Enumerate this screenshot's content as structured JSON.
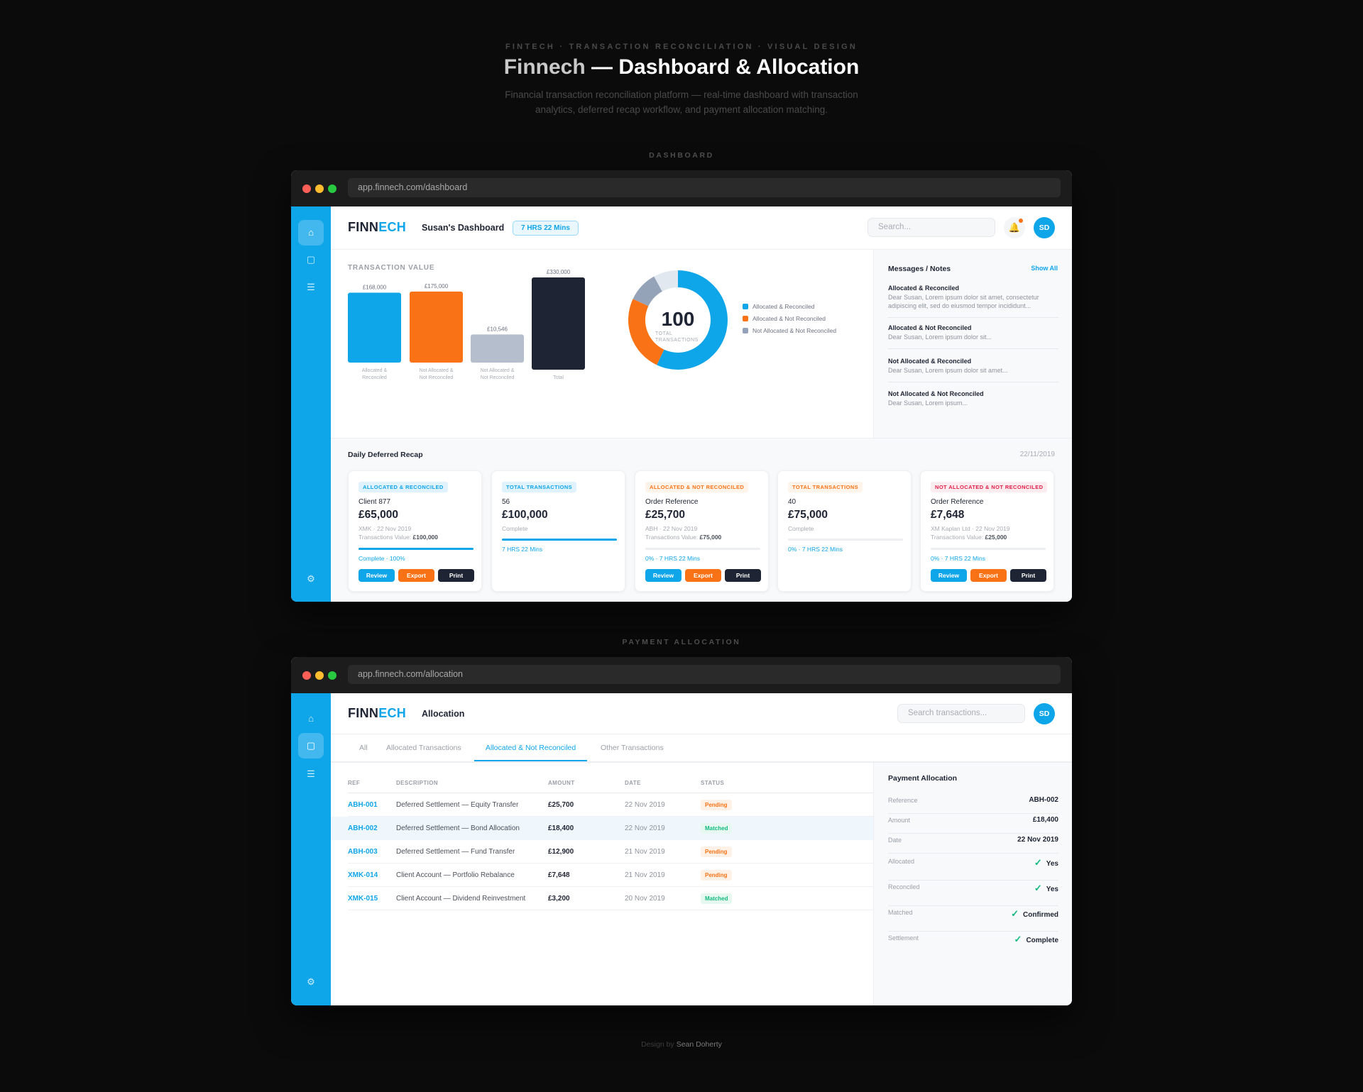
{
  "hero": {
    "eyebrow": "FINTECH · TRANSACTION RECONCILIATION · VISUAL DESIGN",
    "title_part1": "Finnech",
    "title_part2": " — Dashboard & Allocation",
    "subtitle_line1": "Financial transaction reconciliation platform — real-time dashboard with transaction",
    "subtitle_line2": "analytics, deferred recap workflow, and payment allocation matching."
  },
  "sections": {
    "dashboard": "DASHBOARD",
    "allocation": "PAYMENT ALLOCATION"
  },
  "colors": {
    "primary": "#0ea5e9",
    "orange": "#f97316",
    "navy": "#1e2433",
    "gray": "#94a3b8",
    "light": "#e2e8f0",
    "green": "#10b981",
    "red": "#e11d48"
  },
  "dashboard": {
    "url": "app.finnech.com/dashboard",
    "logo_a": "FINN",
    "logo_b": "ECH",
    "page_title": "Susan's Dashboard",
    "timer": "7 HRS 22 Mins",
    "search_placeholder": "Search...",
    "avatar": "SD",
    "icons": [
      "home-icon",
      "square-icon",
      "menu-icon",
      "settings-icon"
    ],
    "messages": {
      "title": "Messages / Notes",
      "show_all": "Show All",
      "items": [
        {
          "title": "Allocated & Reconciled",
          "body": "Dear Susan, Lorem ipsum dolor sit amet, consectetur adipiscing elit, sed do eiusmod tempor incididunt..."
        },
        {
          "title": "Allocated & Not Reconciled",
          "body": "Dear Susan, Lorem ipsum dolor sit..."
        },
        {
          "title": "Not Allocated & Reconciled",
          "body": "Dear Susan, Lorem ipsum dolor sit amet..."
        },
        {
          "title": "Not Allocated & Not Reconciled",
          "body": "Dear Susan, Lorem ipsum..."
        }
      ]
    },
    "recap": {
      "title": "Daily Deferred Recap",
      "date": "22/11/2019",
      "cards": [
        {
          "tag": "ALLOCATED & RECONCILED",
          "tag_color": "#0ea5e9",
          "tag_bg": "#e0f2fe",
          "sub": "Client 877",
          "amount": "£65,000",
          "meta1": "XMK · 22 Nov 2019",
          "meta2_label": "Transactions Value: ",
          "meta2_value": "£100,000",
          "progress": 100,
          "status": "Complete · 100%",
          "buttons": [
            "Review",
            "Export",
            "Print"
          ]
        },
        {
          "tag": "TOTAL TRANSACTIONS",
          "tag_color": "#0ea5e9",
          "tag_bg": "#e0f2fe",
          "sub": "56",
          "amount": "£100,000",
          "meta1": "Complete",
          "progress": 100,
          "status": "7 HRS 22 Mins"
        },
        {
          "tag": "ALLOCATED & NOT RECONCILED",
          "tag_color": "#f97316",
          "tag_bg": "#fff4ea",
          "sub": "Order Reference",
          "amount": "£25,700",
          "meta1": "ABH · 22 Nov 2019",
          "meta2_label": "Transactions Value: ",
          "meta2_value": "£75,000",
          "progress": 0,
          "status": "0% · 7 HRS 22 Mins",
          "buttons": [
            "Review",
            "Export",
            "Print"
          ]
        },
        {
          "tag": "TOTAL TRANSACTIONS",
          "tag_color": "#f97316",
          "tag_bg": "#fff4ea",
          "sub": "40",
          "amount": "£75,000",
          "meta1": "Complete",
          "progress": 0,
          "status": "0% · 7 HRS 22 Mins"
        },
        {
          "tag": "NOT ALLOCATED & NOT RECONCILED",
          "tag_color": "#e11d48",
          "tag_bg": "#fdecef",
          "sub": "Order Reference",
          "amount": "£7,648",
          "meta1": "XM Kaplan Ltd · 22 Nov 2019",
          "meta2_label": "Transactions Value: ",
          "meta2_value": "£25,000",
          "progress": 0,
          "status": "0% · 7 HRS 22 Mins",
          "buttons": [
            "Review",
            "Export",
            "Print"
          ]
        }
      ]
    }
  },
  "chart_data": [
    {
      "type": "bar",
      "title": "TRANSACTION VALUE",
      "categories": [
        "Allocated & Reconciled",
        "Not Allocated & Not Reconciled",
        "Not Allocated & Not Reconciled",
        "Total"
      ],
      "values": [
        168000,
        175000,
        10546,
        330000
      ],
      "value_labels": [
        "£168,000",
        "£175,000",
        "£10,546",
        "£330,000"
      ],
      "colors": [
        "#0ea5e9",
        "#f97316",
        "#94a3b8",
        "#1e2433"
      ],
      "grid": false
    },
    {
      "type": "pie",
      "center_value": "100",
      "center_label": "TOTAL TRANSACTIONS",
      "slices": [
        {
          "name": "Allocated & Reconciled",
          "value": 57,
          "color": "#0ea5e9"
        },
        {
          "name": "Allocated & Not Reconciled",
          "value": 25,
          "color": "#f97316"
        },
        {
          "name": "Not Allocated & Not Reconciled",
          "value": 10,
          "color": "#94a3b8"
        },
        {
          "value": 8,
          "color": "#e2e8f0"
        }
      ],
      "legend": "right"
    }
  ],
  "allocation": {
    "url": "app.finnech.com/allocation",
    "logo_a": "FINN",
    "logo_b": "ECH",
    "page_title": "Allocation",
    "search_placeholder": "Search transactions...",
    "avatar": "SD",
    "tabs": [
      "All",
      "Allocated Transactions",
      "Allocated & Not Reconciled",
      "Other Transactions"
    ],
    "active_tab": 2,
    "columns": [
      "REF",
      "DESCRIPTION",
      "AMOUNT",
      "DATE",
      "STATUS"
    ],
    "rows": [
      {
        "ref": "ABH-001",
        "desc": "Deferred Settlement — Equity Transfer",
        "amount": "£25,700",
        "date": "22 Nov 2019",
        "status": "Pending"
      },
      {
        "ref": "ABH-002",
        "desc": "Deferred Settlement — Bond Allocation",
        "amount": "£18,400",
        "date": "22 Nov 2019",
        "status": "Matched",
        "selected": true
      },
      {
        "ref": "ABH-003",
        "desc": "Deferred Settlement — Fund Transfer",
        "amount": "£12,900",
        "date": "21 Nov 2019",
        "status": "Pending"
      },
      {
        "ref": "XMK-014",
        "desc": "Client Account — Portfolio Rebalance",
        "amount": "£7,648",
        "date": "21 Nov 2019",
        "status": "Pending"
      },
      {
        "ref": "XMK-015",
        "desc": "Client Account — Dividend Reinvestment",
        "amount": "£3,200",
        "date": "20 Nov 2019",
        "status": "Matched"
      }
    ],
    "panel": {
      "title": "Payment Allocation",
      "fields": [
        {
          "label": "Reference",
          "value": "ABH-002"
        },
        {
          "label": "Amount",
          "value": "£18,400"
        },
        {
          "label": "Date",
          "value": "22 Nov 2019"
        },
        {
          "label": "Allocated",
          "value": "Yes",
          "check": true
        },
        {
          "label": "Reconciled",
          "value": "Yes",
          "check": true
        },
        {
          "label": "Matched",
          "value": "Confirmed",
          "check": true
        },
        {
          "label": "Settlement",
          "value": "Complete",
          "check": true
        }
      ]
    }
  },
  "footer": {
    "prefix": "Design by ",
    "author": "Sean Doherty"
  }
}
